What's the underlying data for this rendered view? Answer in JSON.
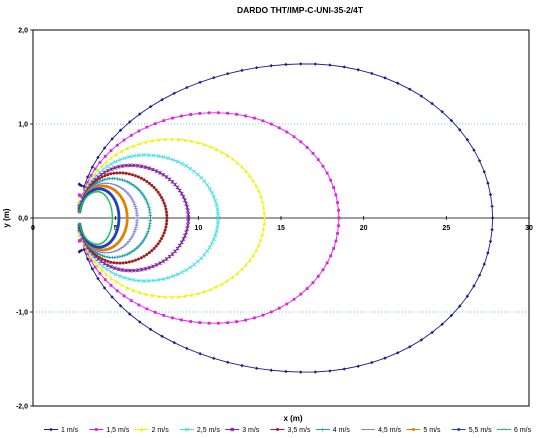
{
  "chart_data": {
    "type": "scatter",
    "title": "DARDO THT/IMP-C-UNI-35-2/4T",
    "xlabel": "x (m)",
    "ylabel": "y (m)",
    "xlim": [
      0,
      30
    ],
    "ylim": [
      -2.0,
      2.0
    ],
    "x_ticks": [
      "0",
      "5",
      "10",
      "15",
      "20",
      "25",
      "30"
    ],
    "y_ticks": [
      "-2,0",
      "-1,0",
      "0,0",
      "1,0",
      "2,0"
    ],
    "grid": "horizontal dotted at y=±1",
    "legend_position": "bottom",
    "nozzle_x": 2.8,
    "series": [
      {
        "name": "1 m/s",
        "color": "#1c1c8c",
        "marker": "diamond",
        "x_max": 27.8,
        "y_max": 1.64,
        "x_at_ymax": 16.5
      },
      {
        "name": "1,5 m/s",
        "color": "#e020e0",
        "marker": "square",
        "x_max": 18.5,
        "y_max": 1.12,
        "x_at_ymax": 11.0
      },
      {
        "name": "2 m/s",
        "color": "#f2f200",
        "marker": "triangle",
        "x_max": 14.0,
        "y_max": 0.84,
        "x_at_ymax": 8.3
      },
      {
        "name": "2,5 m/s",
        "color": "#40e0e0",
        "marker": "x",
        "x_max": 11.2,
        "y_max": 0.67,
        "x_at_ymax": 6.8
      },
      {
        "name": "3 m/s",
        "color": "#8020a0",
        "marker": "star",
        "x_max": 9.4,
        "y_max": 0.56,
        "x_at_ymax": 5.9
      },
      {
        "name": "3,5 m/s",
        "color": "#a02020",
        "marker": "circle",
        "x_max": 8.1,
        "y_max": 0.48,
        "x_at_ymax": 5.2
      },
      {
        "name": "4 m/s",
        "color": "#20a0a0",
        "marker": "plus",
        "x_max": 7.1,
        "y_max": 0.42,
        "x_at_ymax": 4.8
      },
      {
        "name": "4,5 m/s",
        "color": "#8080e0",
        "marker": "line",
        "x_max": 6.3,
        "y_max": 0.37,
        "x_at_ymax": 4.4
      },
      {
        "name": "5 m/s",
        "color": "#e08000",
        "marker": "circle",
        "x_max": 5.7,
        "y_max": 0.34,
        "x_at_ymax": 4.2
      },
      {
        "name": "5,5 m/s",
        "color": "#2040c0",
        "marker": "circle",
        "x_max": 5.2,
        "y_max": 0.31,
        "x_at_ymax": 4.0
      },
      {
        "name": "6 m/s",
        "color": "#20c060",
        "marker": "dot",
        "x_max": 4.8,
        "y_max": 0.28,
        "x_at_ymax": 3.9
      }
    ]
  }
}
